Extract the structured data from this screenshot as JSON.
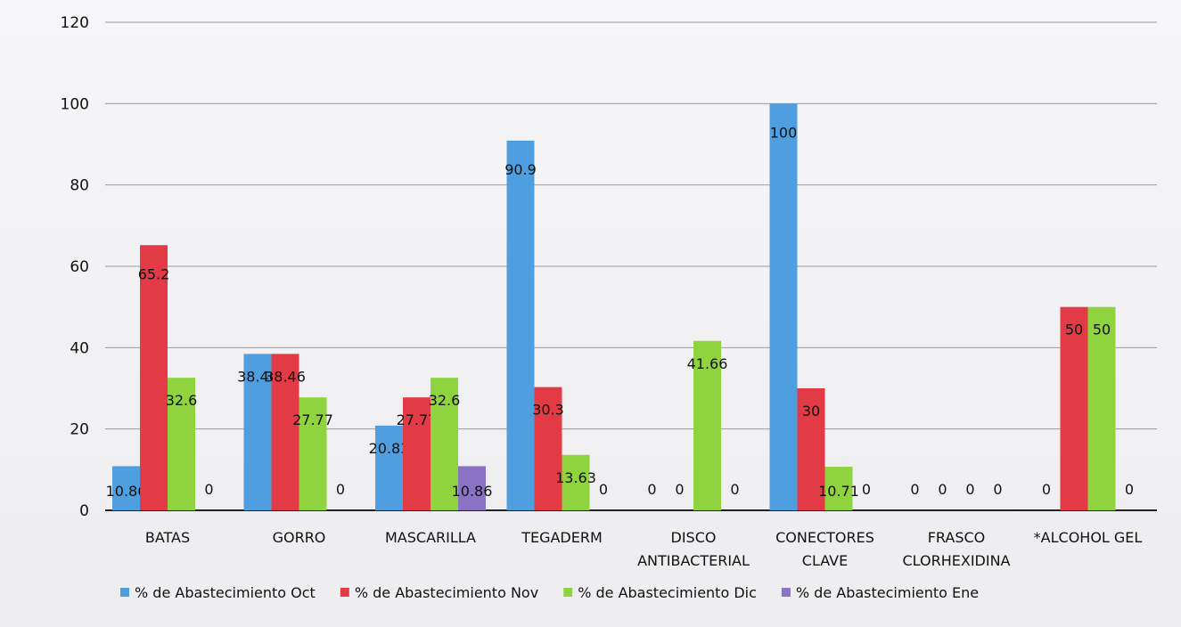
{
  "chart_data": {
    "type": "bar",
    "title": "",
    "xlabel": "",
    "ylabel": "",
    "ylim": [
      0,
      120
    ],
    "yticks": [
      0,
      20,
      40,
      60,
      80,
      100,
      120
    ],
    "grid": true,
    "legend_position": "bottom",
    "categories": [
      [
        "BATAS"
      ],
      [
        "GORRO"
      ],
      [
        "MASCARILLA"
      ],
      [
        "TEGADERM"
      ],
      [
        "DISCO",
        "ANTIBACTERIAL"
      ],
      [
        "CONECTORES",
        "CLAVE"
      ],
      [
        "FRASCO",
        "CLORHEXIDINA"
      ],
      [
        "*ALCOHOL GEL"
      ]
    ],
    "series": [
      {
        "name": "% de Abastecimiento Oct",
        "color": "#4f9fe0",
        "values": [
          10.86,
          38.46,
          20.83,
          90.9,
          0,
          100,
          0,
          0
        ],
        "labels": [
          "10.86",
          "38.46",
          "20.83",
          "90.9",
          "0",
          "100",
          "0",
          "0"
        ]
      },
      {
        "name": "% de Abastecimiento Nov",
        "color": "#e23b45",
        "values": [
          65.2,
          38.46,
          27.77,
          30.3,
          0,
          30,
          0,
          50
        ],
        "labels": [
          "65.2",
          "38.46",
          "27.77",
          "30.3",
          "0",
          "30",
          "0",
          "50"
        ]
      },
      {
        "name": "% de Abastecimiento Dic",
        "color": "#8fd33f",
        "values": [
          32.6,
          27.77,
          32.6,
          13.63,
          41.66,
          10.71,
          0,
          50
        ],
        "labels": [
          "32.6",
          "27.77",
          "32.6",
          "13.63",
          "41.66",
          "10.71",
          "0",
          "50"
        ]
      },
      {
        "name": "% de Abastecimiento Ene",
        "color": "#8a73c4",
        "values": [
          0,
          0,
          10.86,
          0,
          0,
          0,
          0,
          0
        ],
        "labels": [
          "0",
          "0",
          "10.86",
          "0",
          "0",
          "0",
          "0",
          "0"
        ]
      }
    ]
  }
}
